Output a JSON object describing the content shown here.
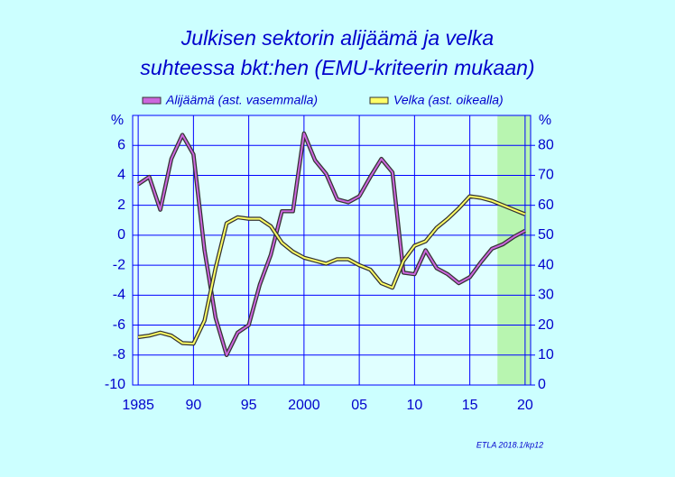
{
  "chart_data": {
    "type": "line",
    "title": [
      "Julkisen sektorin alijäämä ja velka",
      "suhteessa bkt:hen (EMU-kriteerin mukaan)"
    ],
    "y_unit": "%",
    "y2_unit": "%",
    "note": "ETLA 2018.1/kp12",
    "x": [
      1985,
      1986,
      1987,
      1988,
      1989,
      1990,
      1991,
      1992,
      1993,
      1994,
      1995,
      1996,
      1997,
      1998,
      1999,
      2000,
      2001,
      2002,
      2003,
      2004,
      2005,
      2006,
      2007,
      2008,
      2009,
      2010,
      2011,
      2012,
      2013,
      2014,
      2015,
      2016,
      2017,
      2018,
      2019,
      2020
    ],
    "series": [
      {
        "name": "Alijäämä (ast. vasemmalla)",
        "color": "#cc66dd",
        "axis": "y",
        "values": [
          3.4,
          3.9,
          1.7,
          5.1,
          6.7,
          5.4,
          -1.0,
          -5.5,
          -8.0,
          -6.5,
          -6.0,
          -3.3,
          -1.3,
          1.6,
          1.6,
          6.8,
          5.0,
          4.1,
          2.4,
          2.2,
          2.6,
          3.9,
          5.1,
          4.2,
          -2.5,
          -2.6,
          -1.0,
          -2.2,
          -2.6,
          -3.2,
          -2.8,
          -1.8,
          -0.9,
          -0.6,
          -0.1,
          0.3
        ]
      },
      {
        "name": "Velka (ast. oikealla)",
        "color": "#ffff66",
        "axis": "y2",
        "values": [
          16,
          16.5,
          17.5,
          16.5,
          14,
          13.8,
          21.5,
          39,
          54,
          56,
          55.5,
          55.5,
          53,
          47.5,
          44.5,
          42.5,
          41.5,
          40.5,
          42,
          42,
          40,
          38.5,
          34,
          32.5,
          41.5,
          46.5,
          48,
          52.5,
          55.5,
          59,
          63,
          62.5,
          61.5,
          60,
          58.5,
          57
        ]
      }
    ],
    "xlim": [
      1984.5,
      2020.5
    ],
    "xticks": [
      {
        "value": 1985,
        "label": "1985"
      },
      {
        "value": 1990,
        "label": "90"
      },
      {
        "value": 1995,
        "label": "95"
      },
      {
        "value": 2000,
        "label": "2000"
      },
      {
        "value": 2005,
        "label": "05"
      },
      {
        "value": 2010,
        "label": "10"
      },
      {
        "value": 2015,
        "label": "15"
      },
      {
        "value": 2020,
        "label": "20"
      }
    ],
    "ylim": [
      -10,
      8
    ],
    "yticks": [
      -10,
      -8,
      -6,
      -4,
      -2,
      0,
      2,
      4,
      6
    ],
    "y2lim": [
      0,
      90
    ],
    "y2ticks": [
      0,
      10,
      20,
      30,
      40,
      50,
      60,
      70,
      80
    ],
    "shaded_region": [
      2017.5,
      2020.5
    ],
    "shade_color": "#b8f5b0",
    "grid": true
  }
}
